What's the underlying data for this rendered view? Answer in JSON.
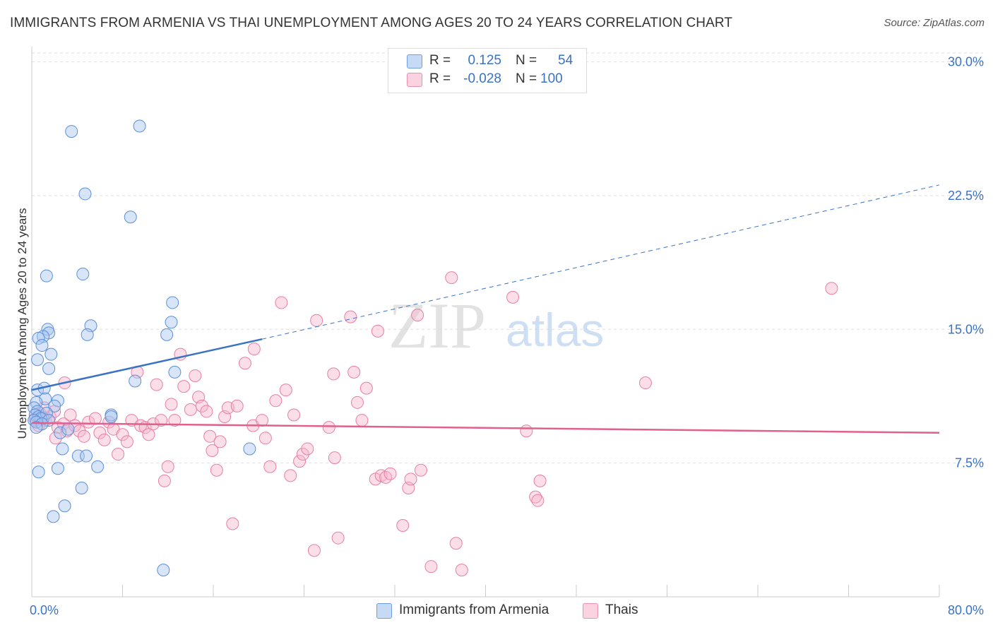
{
  "title": "IMMIGRANTS FROM ARMENIA VS THAI UNEMPLOYMENT AMONG AGES 20 TO 24 YEARS CORRELATION CHART",
  "source": "Source: ZipAtlas.com",
  "watermark": {
    "zip": "ZIP",
    "atlas": "atlas"
  },
  "legend": {
    "rows": [
      {
        "r_label": "R =",
        "r_value": "0.125",
        "n_label": "N =",
        "n_value": "54",
        "color": "#a9c6f0"
      },
      {
        "r_label": "R =",
        "r_value": "-0.028",
        "n_label": "N =",
        "n_value": "100",
        "color": "#f7b6cb"
      }
    ]
  },
  "bottom_legend": [
    {
      "label": "Immigrants from Armenia",
      "color": "#a9c6f0"
    },
    {
      "label": "Thais",
      "color": "#f7b6cb"
    }
  ],
  "chart_data": {
    "type": "scatter",
    "title": "IMMIGRANTS FROM ARMENIA VS THAI UNEMPLOYMENT AMONG AGES 20 TO 24 YEARS CORRELATION CHART",
    "xlabel": "",
    "ylabel": "Unemployment Among Ages 20 to 24 years",
    "xlim": [
      0,
      80
    ],
    "ylim": [
      0,
      30.5
    ],
    "x_tick_labels": [
      "0.0%",
      "80.0%"
    ],
    "y_ticks": [
      7.5,
      15.0,
      22.5,
      30.0
    ],
    "y_tick_labels": [
      "7.5%",
      "15.0%",
      "22.5%",
      "30.0%"
    ],
    "grid": true,
    "series": [
      {
        "name": "Immigrants from Armenia",
        "color": "#a9c6f0",
        "stroke": "#5b8fd9",
        "trend": {
          "x0": 0,
          "y0": 11.6,
          "x1": 20.3,
          "y1": 14.45,
          "dash_x1": 80,
          "dash_y1": 23.1,
          "color": "#3a72c4"
        },
        "points": [
          [
            3.5,
            26.1
          ],
          [
            9.5,
            26.4
          ],
          [
            4.7,
            22.6
          ],
          [
            8.7,
            21.3
          ],
          [
            1.3,
            18.0
          ],
          [
            4.5,
            18.1
          ],
          [
            12.4,
            16.5
          ],
          [
            1.4,
            15.0
          ],
          [
            1.5,
            14.8
          ],
          [
            1.0,
            14.6
          ],
          [
            0.6,
            14.5
          ],
          [
            0.9,
            14.1
          ],
          [
            0.5,
            13.3
          ],
          [
            1.7,
            13.6
          ],
          [
            12.3,
            15.4
          ],
          [
            5.2,
            15.2
          ],
          [
            4.9,
            14.7
          ],
          [
            11.9,
            14.7
          ],
          [
            1.5,
            12.8
          ],
          [
            9.1,
            12.1
          ],
          [
            12.6,
            12.6
          ],
          [
            0.5,
            11.6
          ],
          [
            1.1,
            11.7
          ],
          [
            1.2,
            11.1
          ],
          [
            2.3,
            11.0
          ],
          [
            0.4,
            10.9
          ],
          [
            0.2,
            10.6
          ],
          [
            2.0,
            10.7
          ],
          [
            0.5,
            10.4
          ],
          [
            0.3,
            10.2
          ],
          [
            0.6,
            10.1
          ],
          [
            1.0,
            10.0
          ],
          [
            1.3,
            10.3
          ],
          [
            0.8,
            10.0
          ],
          [
            0.2,
            9.9
          ],
          [
            1.5,
            9.9
          ],
          [
            0.4,
            9.8
          ],
          [
            0.9,
            9.7
          ],
          [
            0.4,
            9.5
          ],
          [
            2.5,
            9.2
          ],
          [
            3.2,
            9.4
          ],
          [
            7.0,
            10.2
          ],
          [
            2.7,
            8.3
          ],
          [
            4.1,
            7.9
          ],
          [
            4.8,
            7.9
          ],
          [
            5.8,
            7.3
          ],
          [
            2.3,
            7.2
          ],
          [
            0.6,
            7.0
          ],
          [
            19.2,
            8.3
          ],
          [
            4.4,
            6.1
          ],
          [
            2.9,
            5.1
          ],
          [
            1.9,
            4.5
          ],
          [
            11.6,
            1.5
          ],
          [
            7.0,
            10.1
          ]
        ]
      },
      {
        "name": "Thais",
        "color": "#f7b6cb",
        "stroke": "#e87fa3",
        "trend": {
          "x0": 0,
          "y0": 9.75,
          "x1": 80,
          "y1": 9.2,
          "color": "#e0608e"
        },
        "points": [
          [
            0.4,
            9.8
          ],
          [
            0.7,
            10.3
          ],
          [
            0.9,
            10.1
          ],
          [
            1.2,
            9.9
          ],
          [
            1.6,
            10.1
          ],
          [
            2.0,
            10.4
          ],
          [
            2.3,
            9.5
          ],
          [
            2.8,
            9.7
          ],
          [
            3.1,
            9.3
          ],
          [
            3.4,
            10.2
          ],
          [
            3.8,
            9.6
          ],
          [
            4.2,
            9.3
          ],
          [
            4.6,
            9.0
          ],
          [
            5.0,
            9.8
          ],
          [
            5.6,
            10.0
          ],
          [
            6.0,
            9.2
          ],
          [
            6.4,
            8.8
          ],
          [
            6.8,
            9.8
          ],
          [
            7.2,
            9.4
          ],
          [
            7.6,
            8.0
          ],
          [
            8.0,
            9.1
          ],
          [
            8.4,
            8.7
          ],
          [
            8.8,
            9.9
          ],
          [
            9.3,
            12.6
          ],
          [
            9.6,
            9.6
          ],
          [
            10.0,
            9.5
          ],
          [
            10.3,
            9.1
          ],
          [
            10.7,
            9.7
          ],
          [
            11.0,
            11.9
          ],
          [
            11.4,
            9.9
          ],
          [
            11.7,
            6.5
          ],
          [
            12.0,
            7.3
          ],
          [
            12.3,
            10.8
          ],
          [
            12.6,
            9.9
          ],
          [
            13.1,
            13.6
          ],
          [
            13.4,
            11.8
          ],
          [
            14.0,
            10.5
          ],
          [
            14.4,
            12.4
          ],
          [
            14.7,
            11.2
          ],
          [
            15.0,
            10.7
          ],
          [
            15.4,
            10.4
          ],
          [
            15.7,
            9.0
          ],
          [
            15.9,
            8.2
          ],
          [
            16.3,
            7.1
          ],
          [
            16.6,
            8.7
          ],
          [
            17.0,
            10.1
          ],
          [
            17.3,
            10.6
          ],
          [
            17.7,
            4.1
          ],
          [
            18.1,
            10.7
          ],
          [
            18.8,
            13.1
          ],
          [
            19.5,
            9.6
          ],
          [
            19.6,
            13.9
          ],
          [
            20.3,
            9.9
          ],
          [
            20.6,
            8.9
          ],
          [
            21.0,
            7.3
          ],
          [
            21.5,
            11.0
          ],
          [
            22.0,
            16.5
          ],
          [
            22.8,
            6.8
          ],
          [
            22.4,
            11.6
          ],
          [
            23.1,
            10.2
          ],
          [
            23.6,
            7.6
          ],
          [
            23.9,
            8.0
          ],
          [
            24.3,
            8.3
          ],
          [
            24.9,
            2.6
          ],
          [
            25.1,
            15.5
          ],
          [
            26.2,
            9.5
          ],
          [
            26.6,
            12.5
          ],
          [
            26.7,
            7.8
          ],
          [
            27.0,
            3.3
          ],
          [
            28.1,
            15.7
          ],
          [
            28.4,
            12.6
          ],
          [
            28.7,
            10.9
          ],
          [
            29.1,
            9.9
          ],
          [
            29.5,
            11.7
          ],
          [
            30.3,
            6.6
          ],
          [
            30.5,
            14.9
          ],
          [
            30.8,
            6.8
          ],
          [
            31.2,
            6.7
          ],
          [
            31.6,
            6.9
          ],
          [
            32.7,
            4.0
          ],
          [
            33.2,
            6.1
          ],
          [
            33.4,
            6.6
          ],
          [
            34.0,
            15.8
          ],
          [
            34.3,
            7.1
          ],
          [
            35.2,
            1.7
          ],
          [
            37.0,
            17.9
          ],
          [
            37.4,
            3.0
          ],
          [
            37.9,
            1.5
          ],
          [
            42.4,
            16.8
          ],
          [
            43.6,
            9.3
          ],
          [
            44.4,
            5.6
          ],
          [
            44.6,
            5.4
          ],
          [
            44.8,
            6.5
          ],
          [
            54.1,
            12.0
          ],
          [
            70.5,
            17.3
          ],
          [
            0.3,
            10.0
          ],
          [
            0.6,
            9.6
          ],
          [
            2.1,
            8.9
          ],
          [
            2.9,
            12.0
          ],
          [
            1.1,
            10.6
          ]
        ]
      }
    ]
  }
}
